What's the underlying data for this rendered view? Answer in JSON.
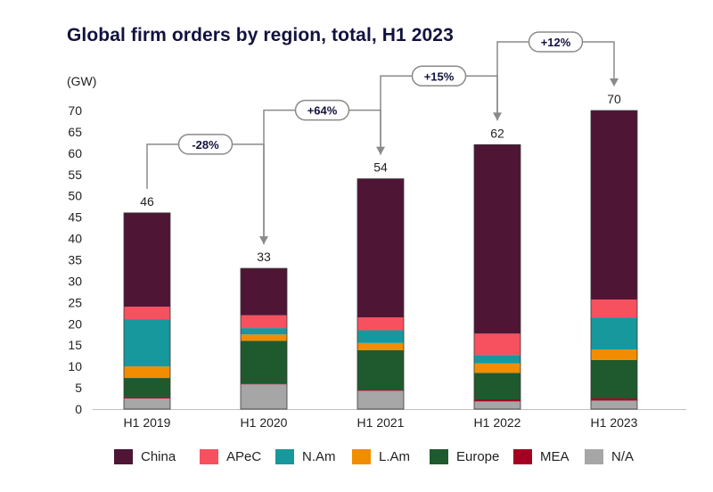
{
  "chart_data": {
    "type": "bar",
    "stacked": true,
    "title": "Global firm orders by region, total, H1 2023",
    "ylabel": "(GW)",
    "ylim": [
      0,
      70
    ],
    "yticks": [
      0,
      5,
      10,
      15,
      20,
      25,
      30,
      35,
      40,
      45,
      50,
      55,
      60,
      65,
      70
    ],
    "categories": [
      "H1 2019",
      "H1 2020",
      "H1 2021",
      "H1 2022",
      "H1 2023"
    ],
    "totals": [
      46,
      33,
      54,
      62,
      70
    ],
    "series": [
      {
        "name": "N/A",
        "color": "#a6a6a6",
        "values": [
          2.5,
          5.8,
          4.3,
          1.8,
          2.0
        ]
      },
      {
        "name": "MEA",
        "color": "#a50021",
        "values": [
          0.3,
          0.2,
          0.2,
          0.5,
          0.5
        ]
      },
      {
        "name": "Europe",
        "color": "#1e5a2e",
        "values": [
          4.5,
          10.0,
          9.3,
          6.2,
          9.0
        ]
      },
      {
        "name": "L.Am",
        "color": "#f28c00",
        "values": [
          2.7,
          1.5,
          1.7,
          2.2,
          2.5
        ]
      },
      {
        "name": "N.Am",
        "color": "#17989c",
        "values": [
          11.0,
          1.5,
          3.0,
          2.0,
          7.5
        ]
      },
      {
        "name": "APeC",
        "color": "#f7505f",
        "values": [
          3.0,
          3.0,
          3.0,
          5.0,
          4.2
        ]
      },
      {
        "name": "China",
        "color": "#4e1535",
        "values": [
          22.0,
          11.0,
          32.5,
          44.3,
          44.3
        ]
      }
    ],
    "changes": [
      "-28%",
      "+64%",
      "+15%",
      "+12%"
    ],
    "legend_order": [
      "China",
      "APeC",
      "N.Am",
      "L.Am",
      "Europe",
      "MEA",
      "N/A"
    ],
    "legend_position": "bottom"
  }
}
